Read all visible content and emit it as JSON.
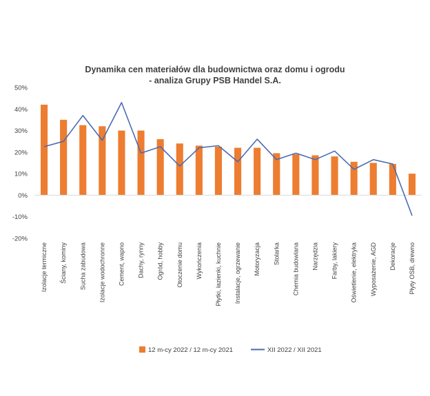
{
  "chart_data": {
    "type": "bar",
    "title": [
      "Dynamika cen materiałów dla budownictwa oraz domu i ogrodu",
      "- analiza Grupy PSB Handel S.A."
    ],
    "xlabel": "",
    "ylabel": "",
    "ylim": [
      -0.2,
      0.5
    ],
    "yticks": [
      "-20%",
      "-10%",
      "0%",
      "10%",
      "20%",
      "30%",
      "40%",
      "50%"
    ],
    "grid": false,
    "legend_position": "bottom",
    "categories": [
      "Izolacje termiczne",
      "Ściany, kominy",
      "Sucha zabudowa",
      "Izolacje wodochronne",
      "Cement, wapno",
      "Dachy, rynny",
      "Ogród, hobby",
      "Otoczenie domu",
      "Wykończenia",
      "Płytki, łazienki, kuchnie",
      "Instalacje, ogrzewanie",
      "Motoryzacja",
      "Stolarka",
      "Chemia budowlana",
      "Narzędzia",
      "Farby, lakiery",
      "Oświetlenie, elektryka",
      "Wyposażenie, AGD",
      "Dekoracje",
      "Płyty OSB, drewno"
    ],
    "series": [
      {
        "name": "12 m-cy 2022 / 12 m-cy 2021",
        "type": "bar",
        "color": "#ed7d31",
        "values": [
          0.42,
          0.35,
          0.325,
          0.32,
          0.3,
          0.3,
          0.26,
          0.24,
          0.23,
          0.225,
          0.22,
          0.22,
          0.195,
          0.19,
          0.185,
          0.18,
          0.155,
          0.15,
          0.145,
          0.1
        ]
      },
      {
        "name": "XII 2022 / XII 2021",
        "type": "line",
        "color": "#4a6bb0",
        "values": [
          0.225,
          0.25,
          0.37,
          0.255,
          0.43,
          0.195,
          0.225,
          0.135,
          0.22,
          0.23,
          0.155,
          0.26,
          0.165,
          0.195,
          0.165,
          0.205,
          0.12,
          0.165,
          0.145,
          -0.095
        ]
      }
    ]
  }
}
